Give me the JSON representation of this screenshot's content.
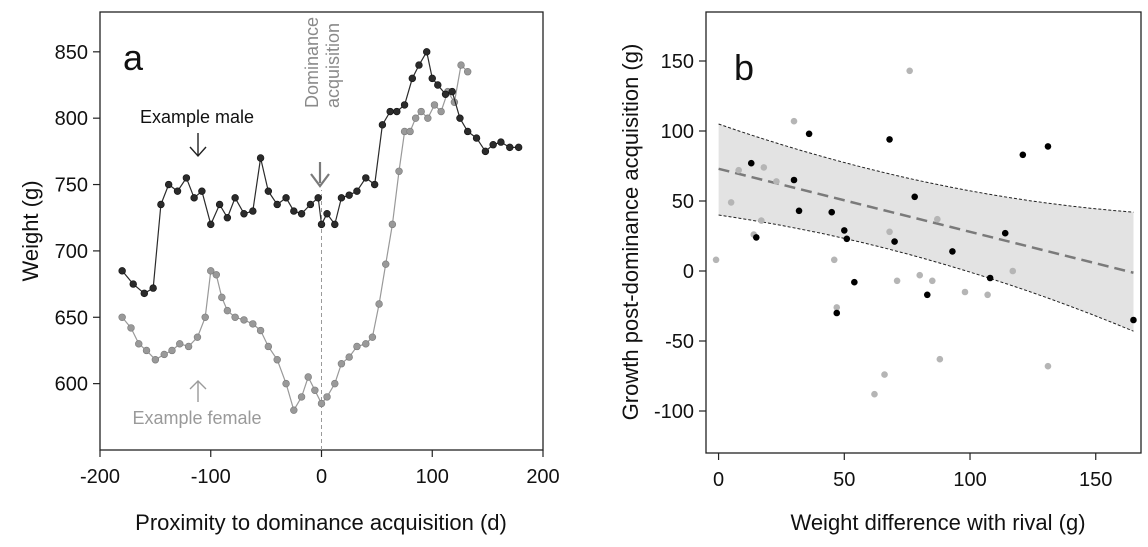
{
  "chart_data": [
    {
      "panel": "a",
      "type": "line",
      "title": "",
      "xlabel": "Proximity to dominance acquisition (d)",
      "ylabel": "Weight (g)",
      "xlim": [
        -200,
        200
      ],
      "ylim": [
        550,
        880
      ],
      "xticks": [
        -200,
        -100,
        0,
        100,
        200
      ],
      "xtick_labels": [
        "-200",
        "-100",
        "0",
        "100",
        "200"
      ],
      "yticks": [
        600,
        650,
        700,
        750,
        800,
        850
      ],
      "ytick_labels": [
        "600",
        "650",
        "700",
        "750",
        "800",
        "850"
      ],
      "grid": false,
      "series": [
        {
          "name": "Example male",
          "color": "#2b2b2b",
          "x": [
            -180,
            -170,
            -160,
            -152,
            -145,
            -138,
            -130,
            -122,
            -115,
            -108,
            -100,
            -92,
            -85,
            -78,
            -70,
            -62,
            -55,
            -48,
            -40,
            -32,
            -25,
            -18,
            -10,
            -3,
            0,
            5,
            12,
            18,
            25,
            32,
            40,
            48,
            55,
            62,
            68,
            75,
            82,
            88,
            95,
            100,
            105,
            112,
            118,
            125,
            132,
            140,
            148,
            155,
            162,
            170,
            178
          ],
          "y": [
            685,
            675,
            668,
            672,
            735,
            750,
            745,
            755,
            740,
            745,
            720,
            735,
            725,
            740,
            728,
            730,
            770,
            745,
            735,
            740,
            730,
            728,
            735,
            740,
            720,
            728,
            720,
            740,
            742,
            745,
            755,
            750,
            795,
            805,
            805,
            810,
            830,
            840,
            850,
            830,
            825,
            818,
            820,
            800,
            790,
            785,
            775,
            780,
            782,
            778,
            778
          ]
        },
        {
          "name": "Example female",
          "color": "#999999",
          "x": [
            -180,
            -172,
            -165,
            -158,
            -150,
            -142,
            -135,
            -128,
            -120,
            -112,
            -105,
            -100,
            -95,
            -90,
            -85,
            -78,
            -70,
            -62,
            -55,
            -48,
            -40,
            -32,
            -25,
            -18,
            -12,
            -6,
            0,
            5,
            12,
            18,
            25,
            32,
            40,
            46,
            52,
            58,
            64,
            70,
            75,
            80,
            85,
            90,
            96,
            102,
            108,
            114,
            120,
            126,
            132
          ],
          "y": [
            650,
            642,
            630,
            625,
            618,
            622,
            625,
            630,
            628,
            635,
            650,
            685,
            682,
            665,
            655,
            650,
            648,
            645,
            640,
            628,
            618,
            600,
            580,
            590,
            605,
            595,
            585,
            590,
            600,
            615,
            620,
            628,
            630,
            635,
            660,
            690,
            720,
            760,
            790,
            790,
            800,
            805,
            800,
            810,
            805,
            820,
            812,
            840,
            835
          ]
        }
      ],
      "annotations": {
        "male_label": "Example male",
        "female_label": "Example female",
        "event_label_line1": "Dominance",
        "event_label_line2": "acquisition",
        "event_x": 0
      }
    },
    {
      "panel": "b",
      "type": "scatter",
      "title": "",
      "xlabel": "Weight difference with rival (g)",
      "ylabel": "Growth post-dominance acquisition (g)",
      "xlim": [
        -5,
        168
      ],
      "ylim": [
        -130,
        185
      ],
      "xticks": [
        0,
        50,
        100,
        150
      ],
      "xtick_labels": [
        "0",
        "50",
        "100",
        "150"
      ],
      "yticks": [
        -100,
        -50,
        0,
        50,
        100,
        150
      ],
      "ytick_labels": [
        "-100",
        "-50",
        "0",
        "50",
        "100",
        "150"
      ],
      "grid": false,
      "fit": {
        "y_at_x0": 73,
        "slope": -0.45,
        "ci_lower_at_0": 40,
        "ci_upper_at_0": 105,
        "ci_lower_at_165": -43,
        "ci_upper_at_165": 42
      },
      "series": [
        {
          "name": "",
          "color": "#000000",
          "x": [
            13,
            15,
            30,
            32,
            36,
            45,
            47,
            50,
            51,
            54,
            68,
            70,
            78,
            83,
            93,
            108,
            114,
            121,
            131,
            165
          ],
          "y": [
            77,
            24,
            65,
            43,
            98,
            42,
            -30,
            29,
            23,
            -8,
            94,
            21,
            53,
            -17,
            14,
            -5,
            27,
            83,
            89,
            -35
          ]
        },
        {
          "name": "",
          "color": "#b5b5b5",
          "x": [
            -1,
            5,
            8,
            14,
            17,
            18,
            23,
            30,
            46,
            47,
            62,
            66,
            68,
            71,
            76,
            80,
            85,
            87,
            88,
            98,
            107,
            117,
            131
          ],
          "y": [
            8,
            49,
            72,
            26,
            36,
            74,
            64,
            107,
            8,
            -26,
            -88,
            -74,
            28,
            -7,
            143,
            -3,
            -7,
            37,
            -63,
            -15,
            -17,
            0,
            -68
          ]
        }
      ]
    }
  ]
}
